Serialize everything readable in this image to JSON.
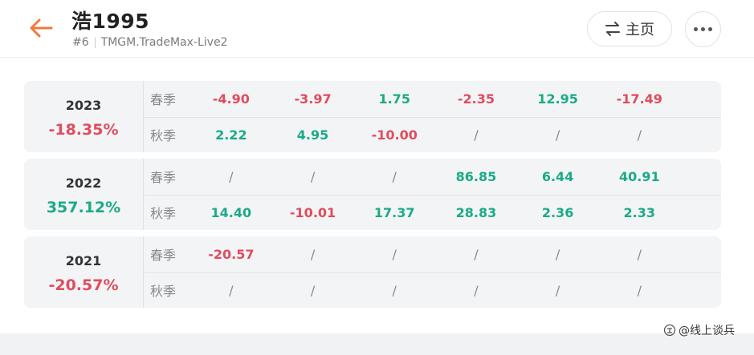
{
  "header": {
    "title": "浩1995",
    "rank": "#6",
    "server": "TMGM.TradeMax-Live2",
    "home_label": "主页"
  },
  "colors": {
    "positive": "#1aab86",
    "negative": "#e04c5c",
    "accent": "#f07a3b"
  },
  "years": [
    {
      "year": "2023",
      "total": "-18.35%",
      "total_sign": "neg",
      "rows": [
        {
          "label": "春季",
          "cells": [
            {
              "v": "-4.90",
              "s": "neg"
            },
            {
              "v": "-3.97",
              "s": "neg"
            },
            {
              "v": "1.75",
              "s": "pos"
            },
            {
              "v": "-2.35",
              "s": "neg"
            },
            {
              "v": "12.95",
              "s": "pos"
            },
            {
              "v": "-17.49",
              "s": "neg"
            }
          ]
        },
        {
          "label": "秋季",
          "cells": [
            {
              "v": "2.22",
              "s": "pos"
            },
            {
              "v": "4.95",
              "s": "pos"
            },
            {
              "v": "-10.00",
              "s": "neg"
            },
            {
              "v": "/",
              "s": "na"
            },
            {
              "v": "/",
              "s": "na"
            },
            {
              "v": "/",
              "s": "na"
            }
          ]
        }
      ]
    },
    {
      "year": "2022",
      "total": "357.12%",
      "total_sign": "pos",
      "rows": [
        {
          "label": "春季",
          "cells": [
            {
              "v": "/",
              "s": "na"
            },
            {
              "v": "/",
              "s": "na"
            },
            {
              "v": "/",
              "s": "na"
            },
            {
              "v": "86.85",
              "s": "pos"
            },
            {
              "v": "6.44",
              "s": "pos"
            },
            {
              "v": "40.91",
              "s": "pos"
            }
          ]
        },
        {
          "label": "秋季",
          "cells": [
            {
              "v": "14.40",
              "s": "pos"
            },
            {
              "v": "-10.01",
              "s": "neg"
            },
            {
              "v": "17.37",
              "s": "pos"
            },
            {
              "v": "28.83",
              "s": "pos"
            },
            {
              "v": "2.36",
              "s": "pos"
            },
            {
              "v": "2.33",
              "s": "pos"
            }
          ]
        }
      ]
    },
    {
      "year": "2021",
      "total": "-20.57%",
      "total_sign": "neg",
      "rows": [
        {
          "label": "春季",
          "cells": [
            {
              "v": "-20.57",
              "s": "neg"
            },
            {
              "v": "/",
              "s": "na"
            },
            {
              "v": "/",
              "s": "na"
            },
            {
              "v": "/",
              "s": "na"
            },
            {
              "v": "/",
              "s": "na"
            },
            {
              "v": "/",
              "s": "na"
            }
          ]
        },
        {
          "label": "秋季",
          "cells": [
            {
              "v": "/",
              "s": "na"
            },
            {
              "v": "/",
              "s": "na"
            },
            {
              "v": "/",
              "s": "na"
            },
            {
              "v": "/",
              "s": "na"
            },
            {
              "v": "/",
              "s": "na"
            },
            {
              "v": "/",
              "s": "na"
            }
          ]
        }
      ]
    }
  ],
  "watermark": "@线上谈兵"
}
